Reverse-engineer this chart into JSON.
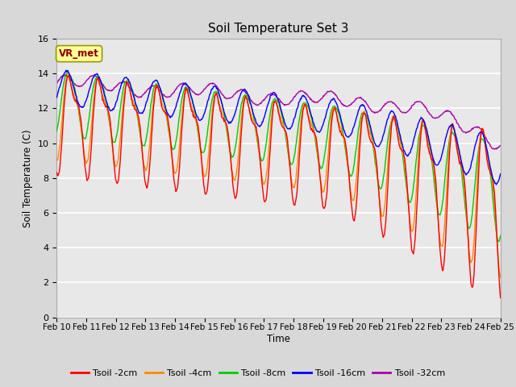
{
  "title": "Soil Temperature Set 3",
  "xlabel": "Time",
  "ylabel": "Soil Temperature (C)",
  "ylim": [
    0,
    16
  ],
  "yticks": [
    0,
    2,
    4,
    6,
    8,
    10,
    12,
    14,
    16
  ],
  "x_labels": [
    "Feb 10",
    "Feb 11",
    "Feb 12",
    "Feb 13",
    "Feb 14",
    "Feb 15",
    "Feb 16",
    "Feb 17",
    "Feb 18",
    "Feb 19",
    "Feb 20",
    "Feb 21",
    "Feb 22",
    "Feb 23",
    "Feb 24",
    "Feb 25"
  ],
  "legend_entries": [
    "Tsoil -2cm",
    "Tsoil -4cm",
    "Tsoil -8cm",
    "Tsoil -16cm",
    "Tsoil -32cm"
  ],
  "line_colors": [
    "#ff0000",
    "#ff8800",
    "#00cc00",
    "#0000ff",
    "#aa00aa"
  ],
  "annotation_text": "VR_met",
  "annotation_box_color": "#ffff99",
  "annotation_border_color": "#999900",
  "fig_bg_color": "#d8d8d8",
  "plot_bg_color": "#e8e8e8",
  "title_fontsize": 11,
  "n_points": 720
}
